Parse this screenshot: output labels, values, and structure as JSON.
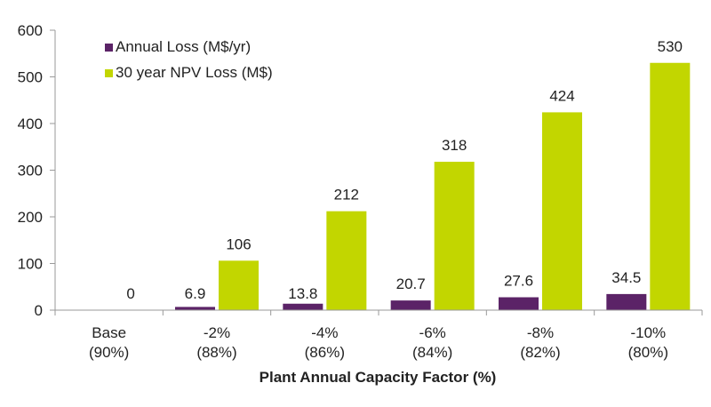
{
  "chart_data": {
    "type": "bar",
    "xlabel": "Plant Annual Capacity Factor (%)",
    "ylabel": "",
    "ylim": [
      0,
      600
    ],
    "yticks": [
      0,
      100,
      200,
      300,
      400,
      500,
      600
    ],
    "grid": false,
    "legend_position": "top-left",
    "categories": [
      [
        "Base",
        "(90%)"
      ],
      [
        "-2%",
        "(88%)"
      ],
      [
        "-4%",
        "(86%)"
      ],
      [
        "-6%",
        "(84%)"
      ],
      [
        "-8%",
        "(82%)"
      ],
      [
        "-10%",
        "(80%)"
      ]
    ],
    "series": [
      {
        "name": "Annual Loss (M$/yr)",
        "color": "#5b2367",
        "values": [
          0,
          6.9,
          13.8,
          20.7,
          27.6,
          34.5
        ],
        "labels": [
          "",
          "6.9",
          "13.8",
          "20.7",
          "27.6",
          "34.5"
        ]
      },
      {
        "name": "30 year NPV Loss (M$)",
        "color": "#c2d600",
        "values": [
          0,
          106,
          212,
          318,
          424,
          530
        ],
        "labels": [
          "0",
          "106",
          "212",
          "318",
          "424",
          "530"
        ]
      }
    ]
  }
}
